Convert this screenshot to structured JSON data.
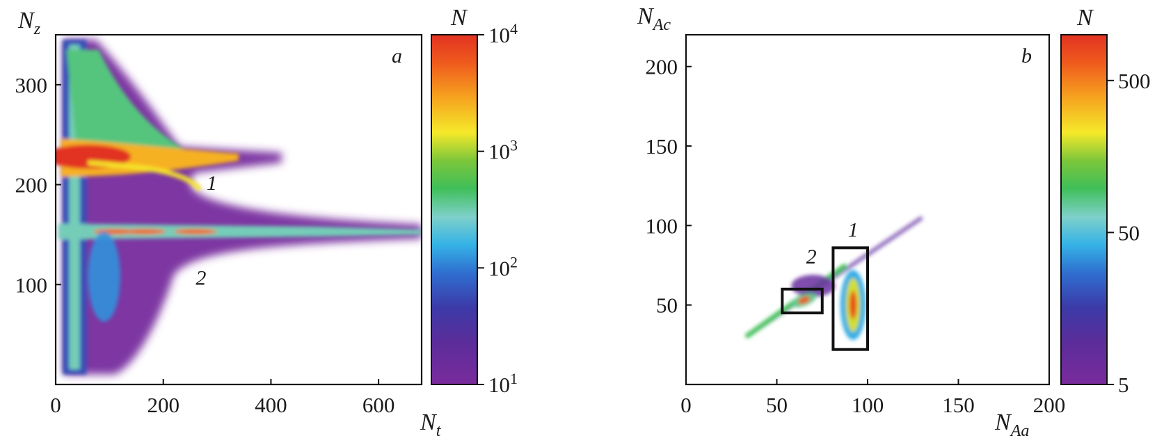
{
  "chart_data": [
    {
      "type": "heatmap",
      "panel_label": "a",
      "xlabel": {
        "main": "N",
        "sub": "t"
      },
      "ylabel": {
        "main": "N",
        "sub": "z"
      },
      "xlim": [
        0,
        680
      ],
      "ylim": [
        0,
        350
      ],
      "xticks": [
        0,
        200,
        400,
        600
      ],
      "yticks": [
        100,
        200,
        300
      ],
      "colorbar": {
        "title": "N",
        "scale": "log",
        "range": [
          10,
          10000
        ],
        "ticks": [
          {
            "value": 10,
            "base": "10",
            "exp": "1"
          },
          {
            "value": 100,
            "base": "10",
            "exp": "2"
          },
          {
            "value": 1000,
            "base": "10",
            "exp": "3"
          },
          {
            "value": 10000,
            "base": "10",
            "exp": "4"
          }
        ]
      },
      "annotations": [
        {
          "text": "1",
          "x": 290,
          "y": 195
        },
        {
          "text": "2",
          "x": 270,
          "y": 100
        }
      ],
      "features": [
        {
          "kind": "vertical_band",
          "x": 35,
          "y_range": [
            10,
            345
          ],
          "peak_count": 300
        },
        {
          "kind": "horizontal_band",
          "y": 228,
          "x_range": [
            0,
            340
          ],
          "peak_count": 10000
        },
        {
          "kind": "horizontal_band",
          "y": 153,
          "x_range": [
            0,
            680
          ],
          "peak_count": 5000
        }
      ]
    },
    {
      "type": "heatmap",
      "panel_label": "b",
      "xlabel": {
        "main": "N",
        "sub": "Aa"
      },
      "ylabel": {
        "main": "N",
        "sub": "Ac"
      },
      "xlim": [
        0,
        200
      ],
      "ylim": [
        0,
        220
      ],
      "xticks": [
        0,
        50,
        100,
        150,
        200
      ],
      "yticks": [
        50,
        100,
        150,
        200
      ],
      "colorbar": {
        "title": "N",
        "scale": "log",
        "range": [
          5,
          1000
        ],
        "ticks": [
          {
            "value": 5,
            "label": "5"
          },
          {
            "value": 50,
            "label": "50"
          },
          {
            "value": 500,
            "label": "500"
          }
        ]
      },
      "annotations": [
        {
          "text": "1",
          "x": 92,
          "y": 93
        },
        {
          "text": "2",
          "x": 69,
          "y": 76
        }
      ],
      "regions": [
        {
          "label": "1",
          "x_range": [
            81,
            100
          ],
          "y_range": [
            22,
            86
          ]
        },
        {
          "label": "2",
          "x_range": [
            53,
            75
          ],
          "y_range": [
            45,
            60
          ]
        }
      ],
      "features": [
        {
          "kind": "diagonal_ridge",
          "from": [
            33,
            30
          ],
          "to": [
            130,
            105
          ],
          "peak_count": 100
        },
        {
          "kind": "blob",
          "center": [
            92,
            50
          ],
          "peak_count": 800
        },
        {
          "kind": "blob",
          "center": [
            65,
            53
          ],
          "peak_count": 700
        }
      ]
    }
  ]
}
